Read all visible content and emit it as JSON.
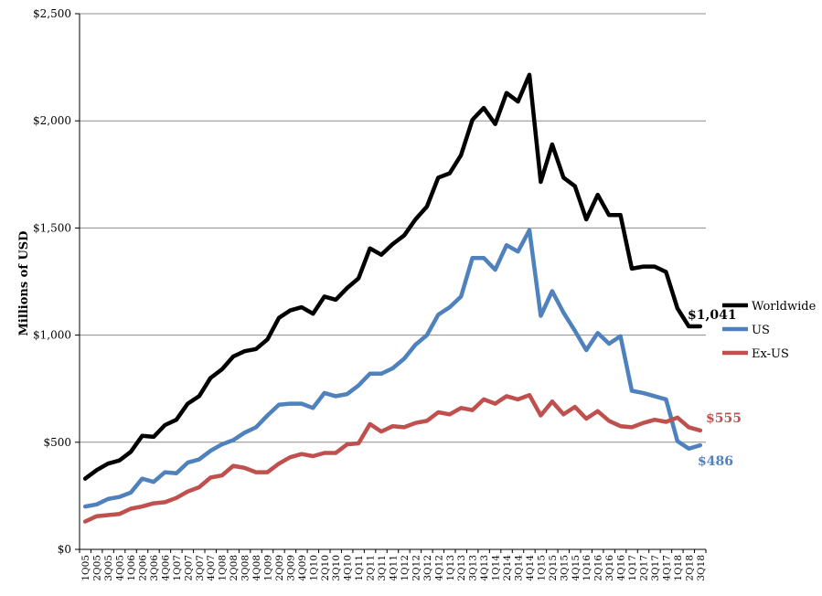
{
  "chart_data": {
    "type": "line",
    "title": "",
    "xlabel": "",
    "ylabel": "Millions of USD",
    "ylim": [
      0,
      2500
    ],
    "yticks": [
      0,
      500,
      1000,
      1500,
      2000,
      2500
    ],
    "ytick_labels": [
      "$0",
      "$500",
      "$1,000",
      "$1,500",
      "$2,000",
      "$2,500"
    ],
    "grid": "horizontal",
    "legend_position": "right",
    "categories": [
      "1Q05",
      "2Q05",
      "3Q05",
      "4Q05",
      "1Q06",
      "2Q06",
      "3Q06",
      "4Q06",
      "1Q07",
      "2Q07",
      "3Q07",
      "4Q07",
      "1Q08",
      "2Q08",
      "3Q08",
      "4Q08",
      "1Q09",
      "2Q09",
      "3Q09",
      "4Q09",
      "1Q10",
      "2Q10",
      "3Q10",
      "4Q10",
      "1Q11",
      "2Q11",
      "3Q11",
      "4Q11",
      "1Q12",
      "2Q12",
      "3Q12",
      "4Q12",
      "1Q13",
      "2Q13",
      "3Q13",
      "4Q13",
      "1Q14",
      "2Q14",
      "3Q14",
      "4Q14",
      "1Q15",
      "2Q15",
      "3Q15",
      "4Q15",
      "1Q16",
      "2Q16",
      "3Q16",
      "4Q16",
      "1Q17",
      "2Q17",
      "3Q17",
      "4Q17",
      "1Q18",
      "2Q18",
      "3Q18"
    ],
    "series": [
      {
        "name": "Worldwide",
        "color": "#000000",
        "end_label": "$1,041",
        "values": [
          330,
          370,
          400,
          415,
          455,
          530,
          525,
          580,
          605,
          680,
          715,
          800,
          840,
          900,
          925,
          935,
          980,
          1080,
          1115,
          1130,
          1100,
          1180,
          1165,
          1220,
          1265,
          1405,
          1375,
          1425,
          1465,
          1540,
          1600,
          1735,
          1755,
          1840,
          2005,
          2060,
          1985,
          2130,
          2090,
          2215,
          1715,
          1890,
          1735,
          1695,
          1540,
          1655,
          1560,
          1560,
          1310,
          1320,
          1320,
          1295,
          1125,
          1041,
          1041
        ]
      },
      {
        "name": "US",
        "color": "#4F81BD",
        "end_label": "$486",
        "values": [
          200,
          210,
          235,
          245,
          265,
          330,
          315,
          360,
          355,
          405,
          420,
          460,
          490,
          510,
          545,
          570,
          625,
          675,
          680,
          680,
          660,
          730,
          715,
          725,
          765,
          820,
          820,
          845,
          890,
          955,
          1000,
          1095,
          1130,
          1180,
          1360,
          1360,
          1305,
          1420,
          1390,
          1490,
          1090,
          1205,
          1105,
          1020,
          930,
          1010,
          960,
          995,
          740,
          730,
          715,
          700,
          505,
          470,
          486
        ]
      },
      {
        "name": "Ex-US",
        "color": "#C0504D",
        "end_label": "$555",
        "values": [
          130,
          155,
          160,
          165,
          190,
          200,
          215,
          220,
          240,
          270,
          290,
          335,
          345,
          390,
          380,
          360,
          360,
          400,
          430,
          445,
          435,
          450,
          450,
          490,
          495,
          585,
          550,
          575,
          570,
          590,
          600,
          640,
          630,
          660,
          650,
          700,
          680,
          715,
          700,
          720,
          625,
          690,
          630,
          665,
          610,
          645,
          600,
          575,
          570,
          590,
          605,
          595,
          615,
          570,
          555
        ]
      }
    ]
  }
}
